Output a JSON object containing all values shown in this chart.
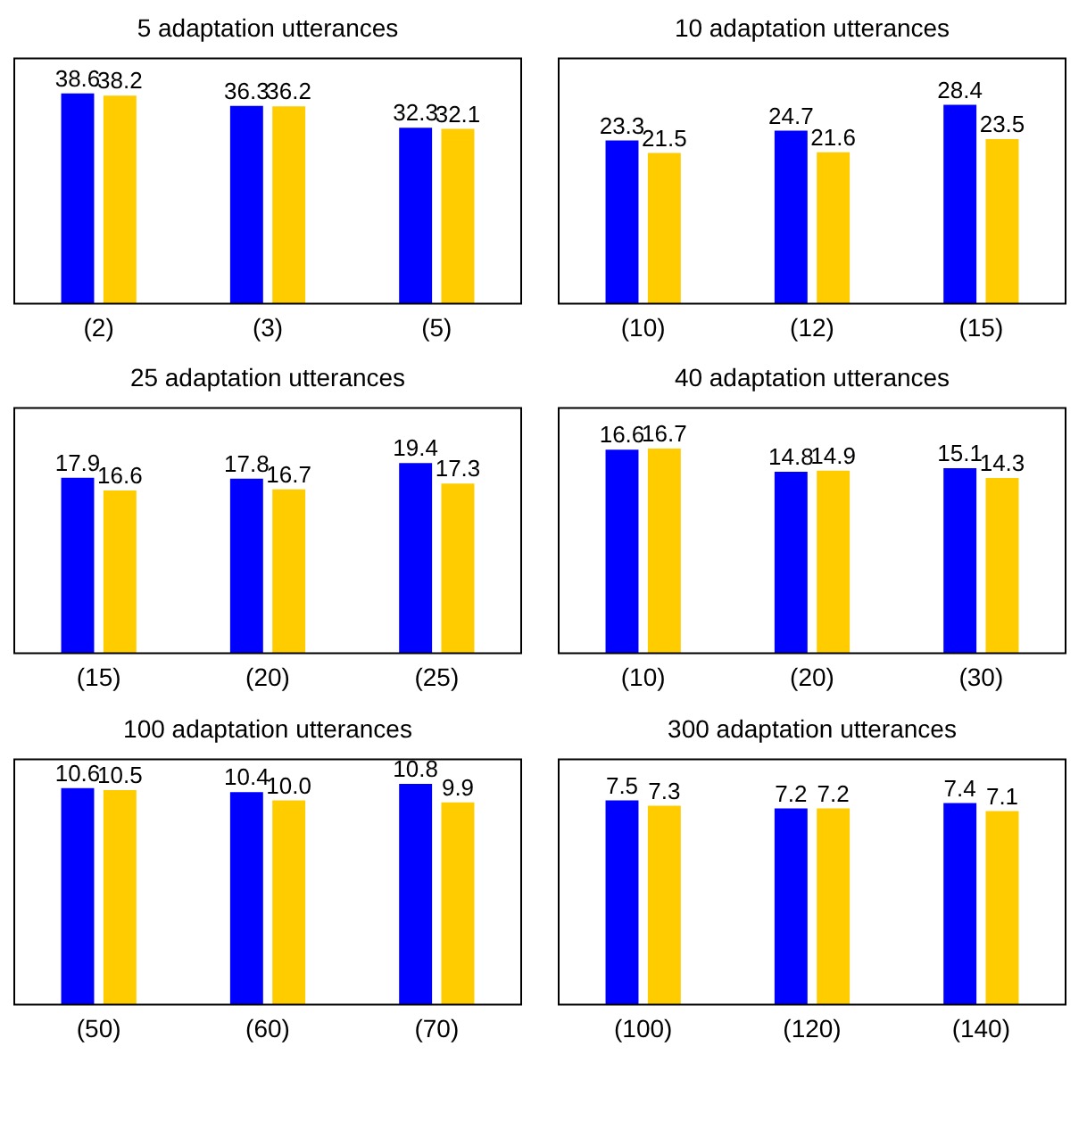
{
  "chart_data": [
    {
      "type": "bar",
      "title": "5 adaptation utterances",
      "categories": [
        "(2)",
        "(3)",
        "(5)"
      ],
      "series": [
        {
          "color": "#0000ff",
          "values": [
            38.6,
            36.3,
            32.3
          ],
          "value_labels": [
            "38.6",
            "36.3",
            "32.3"
          ]
        },
        {
          "color": "#ffcc00",
          "values": [
            38.2,
            36.2,
            32.1
          ],
          "value_labels": [
            "38.2",
            "36.2",
            "32.1"
          ]
        }
      ],
      "grid": false,
      "legend": false,
      "tick_labels": "x"
    },
    {
      "type": "bar",
      "title": "10 adaptation utterances",
      "categories": [
        "(10)",
        "(12)",
        "(15)"
      ],
      "series": [
        {
          "color": "#0000ff",
          "values": [
            23.3,
            24.7,
            28.4
          ],
          "value_labels": [
            "23.3",
            "24.7",
            "28.4"
          ]
        },
        {
          "color": "#ffcc00",
          "values": [
            21.5,
            21.6,
            23.5
          ],
          "value_labels": [
            "21.5",
            "21.6",
            "23.5"
          ]
        }
      ],
      "grid": false,
      "legend": false,
      "tick_labels": "x"
    },
    {
      "type": "bar",
      "title": "25 adaptation utterances",
      "categories": [
        "(15)",
        "(20)",
        "(25)"
      ],
      "series": [
        {
          "color": "#0000ff",
          "values": [
            17.9,
            17.8,
            19.4
          ],
          "value_labels": [
            "17.9",
            "17.8",
            "19.4"
          ]
        },
        {
          "color": "#ffcc00",
          "values": [
            16.6,
            16.7,
            17.3
          ],
          "value_labels": [
            "16.6",
            "16.7",
            "17.3"
          ]
        }
      ],
      "grid": false,
      "legend": false,
      "tick_labels": "x"
    },
    {
      "type": "bar",
      "title": "40 adaptation utterances",
      "categories": [
        "(10)",
        "(20)",
        "(30)"
      ],
      "series": [
        {
          "color": "#0000ff",
          "values": [
            16.6,
            14.8,
            15.1
          ],
          "value_labels": [
            "16.6",
            "14.8",
            "15.1"
          ]
        },
        {
          "color": "#ffcc00",
          "values": [
            16.7,
            14.9,
            14.3
          ],
          "value_labels": [
            "16.7",
            "14.9",
            "14.3"
          ]
        }
      ],
      "grid": false,
      "legend": false,
      "tick_labels": "x"
    },
    {
      "type": "bar",
      "title": "100 adaptation utterances",
      "categories": [
        "(50)",
        "(60)",
        "(70)"
      ],
      "series": [
        {
          "color": "#0000ff",
          "values": [
            10.6,
            10.4,
            10.8
          ],
          "value_labels": [
            "10.6",
            "10.4",
            "10.8"
          ]
        },
        {
          "color": "#ffcc00",
          "values": [
            10.5,
            10.0,
            9.9
          ],
          "value_labels": [
            "10.5",
            "10.0",
            "9.9"
          ]
        }
      ],
      "grid": false,
      "legend": false,
      "tick_labels": "x"
    },
    {
      "type": "bar",
      "title": "300 adaptation utterances",
      "categories": [
        "(100)",
        "(120)",
        "(140)"
      ],
      "series": [
        {
          "color": "#0000ff",
          "values": [
            7.5,
            7.2,
            7.4
          ],
          "value_labels": [
            "7.5",
            "7.2",
            "7.4"
          ]
        },
        {
          "color": "#ffcc00",
          "values": [
            7.3,
            7.2,
            7.1
          ],
          "value_labels": [
            "7.3",
            "7.2",
            "7.1"
          ]
        }
      ],
      "grid": false,
      "legend": false,
      "tick_labels": "x"
    }
  ]
}
